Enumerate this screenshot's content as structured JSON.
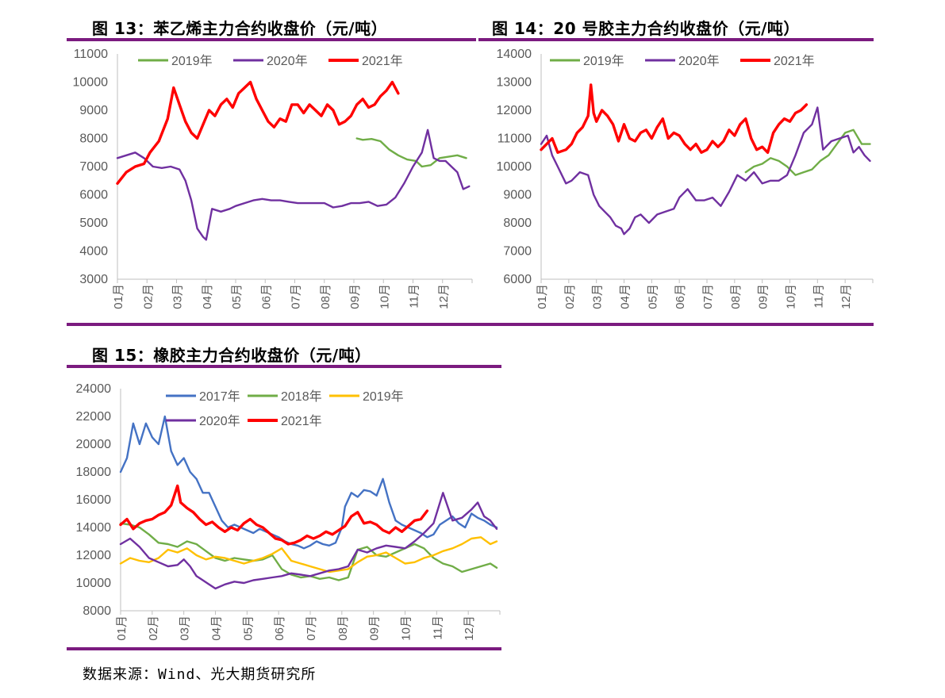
{
  "page": {
    "source": "数据来源：Wind、光大期货研究所"
  },
  "chart_data": [
    {
      "id": "c13",
      "type": "line",
      "title": "图 13：苯乙烯主力合约收盘价（元/吨）",
      "ylim": [
        3000,
        11000
      ],
      "yticks": [
        3000,
        4000,
        5000,
        6000,
        7000,
        8000,
        9000,
        10000,
        11000
      ],
      "categories": [
        "01月",
        "02月",
        "03月",
        "04月",
        "05月",
        "06月",
        "07月",
        "08月",
        "09月",
        "10月",
        "11月",
        "12月"
      ],
      "legend_position": "top",
      "series": [
        {
          "name": "2019年",
          "color": "#70ad47",
          "x": [
            9.1,
            9.3,
            9.6,
            9.9,
            10.2,
            10.5,
            10.8,
            11.1,
            11.3,
            11.6,
            11.9,
            12.2,
            12.5,
            12.8
          ],
          "y": [
            8000,
            7950,
            7980,
            7900,
            7600,
            7400,
            7250,
            7200,
            7000,
            7050,
            7300,
            7350,
            7400,
            7300
          ]
        },
        {
          "name": "2020年",
          "color": "#7030a0",
          "x": [
            1,
            1.3,
            1.6,
            1.9,
            2.2,
            2.5,
            2.8,
            3.1,
            3.3,
            3.5,
            3.7,
            3.9,
            4.0,
            4.2,
            4.5,
            4.8,
            5.0,
            5.3,
            5.6,
            5.9,
            6.2,
            6.5,
            6.8,
            7.1,
            7.4,
            7.7,
            8.0,
            8.3,
            8.6,
            8.9,
            9.2,
            9.5,
            9.8,
            10.1,
            10.4,
            10.7,
            11.0,
            11.3,
            11.5,
            11.7,
            11.9,
            12.1,
            12.3,
            12.5,
            12.7,
            12.9
          ],
          "y": [
            7300,
            7400,
            7500,
            7300,
            7000,
            6950,
            7000,
            6900,
            6500,
            5800,
            4800,
            4500,
            4400,
            5500,
            5400,
            5500,
            5600,
            5700,
            5800,
            5850,
            5800,
            5800,
            5750,
            5700,
            5700,
            5700,
            5700,
            5550,
            5600,
            5700,
            5700,
            5750,
            5600,
            5650,
            5900,
            6400,
            7000,
            7500,
            8300,
            7300,
            7200,
            7200,
            7000,
            6800,
            6200,
            6300
          ]
        },
        {
          "name": "2021年",
          "color": "#ff0000",
          "x": [
            1,
            1.3,
            1.6,
            1.9,
            2.1,
            2.4,
            2.7,
            2.9,
            3.1,
            3.3,
            3.5,
            3.7,
            3.9,
            4.1,
            4.3,
            4.5,
            4.7,
            4.9,
            5.1,
            5.3,
            5.5,
            5.7,
            5.9,
            6.1,
            6.3,
            6.5,
            6.7,
            6.9,
            7.1,
            7.3,
            7.5,
            7.7,
            7.9,
            8.1,
            8.3,
            8.5,
            8.7,
            8.9,
            9.1,
            9.3,
            9.5,
            9.7,
            9.9,
            10.1,
            10.3,
            10.5
          ],
          "y": [
            6400,
            6800,
            7000,
            7100,
            7500,
            7900,
            8700,
            9800,
            9200,
            8600,
            8200,
            8000,
            8500,
            9000,
            8800,
            9200,
            9400,
            9100,
            9600,
            9800,
            10000,
            9400,
            9000,
            8600,
            8400,
            8700,
            8600,
            9200,
            9200,
            8900,
            9200,
            9000,
            8800,
            9200,
            9000,
            8500,
            8600,
            8800,
            9200,
            9400,
            9100,
            9200,
            9500,
            9700,
            10000,
            9600
          ]
        }
      ]
    },
    {
      "id": "c14",
      "type": "line",
      "title": "图 14：20 号胶主力合约收盘价（元/吨）",
      "ylim": [
        6000,
        14000
      ],
      "yticks": [
        6000,
        7000,
        8000,
        9000,
        10000,
        11000,
        12000,
        13000,
        14000
      ],
      "categories": [
        "01月",
        "02月",
        "03月",
        "04月",
        "05月",
        "06月",
        "07月",
        "08月",
        "09月",
        "10月",
        "11月",
        "12月"
      ],
      "legend_position": "top",
      "series": [
        {
          "name": "2019年",
          "color": "#70ad47",
          "x": [
            8.4,
            8.7,
            9.0,
            9.3,
            9.6,
            9.9,
            10.2,
            10.5,
            10.8,
            11.1,
            11.4,
            11.7,
            12.0,
            12.3,
            12.6,
            12.9
          ],
          "y": [
            9800,
            10000,
            10100,
            10300,
            10200,
            10000,
            9700,
            9800,
            9900,
            10200,
            10400,
            10800,
            11200,
            11300,
            10800,
            10800
          ]
        },
        {
          "name": "2020年",
          "color": "#7030a0",
          "x": [
            1,
            1.2,
            1.4,
            1.6,
            1.9,
            2.1,
            2.4,
            2.7,
            2.9,
            3.1,
            3.3,
            3.5,
            3.7,
            3.9,
            4.0,
            4.2,
            4.4,
            4.6,
            4.9,
            5.2,
            5.5,
            5.8,
            6.0,
            6.3,
            6.6,
            6.9,
            7.2,
            7.5,
            7.8,
            8.1,
            8.4,
            8.7,
            9.0,
            9.3,
            9.6,
            9.9,
            10.2,
            10.5,
            10.8,
            11.0,
            11.2,
            11.5,
            11.8,
            12.1,
            12.3,
            12.5,
            12.7,
            12.9
          ],
          "y": [
            10800,
            11100,
            10400,
            10000,
            9400,
            9500,
            9800,
            9700,
            9000,
            8600,
            8400,
            8200,
            7900,
            7800,
            7600,
            7800,
            8200,
            8300,
            8000,
            8300,
            8400,
            8500,
            8900,
            9200,
            8800,
            8800,
            8900,
            8600,
            9100,
            9700,
            9500,
            9800,
            9400,
            9500,
            9500,
            9700,
            10400,
            11200,
            11500,
            12100,
            10600,
            10900,
            11000,
            11100,
            10500,
            10700,
            10400,
            10200
          ]
        },
        {
          "name": "2021年",
          "color": "#ff0000",
          "x": [
            1,
            1.2,
            1.4,
            1.6,
            1.9,
            2.1,
            2.3,
            2.5,
            2.7,
            2.8,
            2.9,
            3.0,
            3.2,
            3.4,
            3.6,
            3.8,
            4.0,
            4.2,
            4.4,
            4.6,
            4.8,
            5.0,
            5.2,
            5.4,
            5.6,
            5.8,
            6.0,
            6.2,
            6.4,
            6.6,
            6.8,
            7.0,
            7.2,
            7.4,
            7.6,
            7.8,
            8.0,
            8.2,
            8.4,
            8.6,
            8.8,
            9.0,
            9.2,
            9.4,
            9.6,
            9.8,
            10.0,
            10.2,
            10.4,
            10.6
          ],
          "y": [
            10600,
            10800,
            11000,
            10500,
            10600,
            10800,
            11200,
            11400,
            11800,
            12900,
            11900,
            11600,
            12000,
            11800,
            11500,
            10900,
            11500,
            11000,
            10900,
            11200,
            11300,
            11000,
            11400,
            11700,
            11000,
            11200,
            11100,
            10800,
            10600,
            10800,
            10500,
            10600,
            10900,
            10700,
            10900,
            11300,
            11100,
            11500,
            11700,
            11000,
            10600,
            10700,
            10500,
            11200,
            11500,
            11700,
            11600,
            11900,
            12000,
            12200
          ]
        }
      ]
    },
    {
      "id": "c15",
      "type": "line",
      "title": "图 15：橡胶主力合约收盘价（元/吨）",
      "ylim": [
        8000,
        24000
      ],
      "yticks": [
        8000,
        10000,
        12000,
        14000,
        16000,
        18000,
        20000,
        22000,
        24000
      ],
      "categories": [
        "01月",
        "02月",
        "03月",
        "04月",
        "05月",
        "06月",
        "07月",
        "08月",
        "09月",
        "10月",
        "11月",
        "12月"
      ],
      "legend_position": "top",
      "series": [
        {
          "name": "2017年",
          "color": "#4472c4",
          "x": [
            1,
            1.2,
            1.4,
            1.6,
            1.8,
            2.0,
            2.2,
            2.4,
            2.6,
            2.8,
            3.0,
            3.2,
            3.4,
            3.6,
            3.8,
            4.0,
            4.2,
            4.4,
            4.6,
            4.8,
            5.0,
            5.2,
            5.4,
            5.6,
            5.8,
            6.0,
            6.2,
            6.4,
            6.6,
            6.8,
            7.0,
            7.2,
            7.4,
            7.6,
            7.8,
            8.0,
            8.1,
            8.3,
            8.5,
            8.7,
            8.9,
            9.1,
            9.3,
            9.5,
            9.7,
            9.9,
            10.1,
            10.3,
            10.5,
            10.7,
            10.9,
            11.1,
            11.3,
            11.5,
            11.7,
            11.9,
            12.1,
            12.3,
            12.5,
            12.7,
            12.9
          ],
          "y": [
            18000,
            19000,
            21500,
            20000,
            21500,
            20500,
            20000,
            22000,
            19500,
            18500,
            19000,
            18000,
            17500,
            16500,
            16500,
            15500,
            14500,
            14000,
            14200,
            14000,
            13800,
            13600,
            13900,
            13700,
            13500,
            13300,
            13000,
            12800,
            12700,
            12500,
            12700,
            13000,
            12800,
            12700,
            12900,
            14000,
            15500,
            16500,
            16200,
            16700,
            16600,
            16300,
            17500,
            15800,
            14500,
            14200,
            14000,
            13800,
            13600,
            13300,
            13500,
            14200,
            14500,
            14800,
            14300,
            14000,
            15000,
            14700,
            14500,
            14200,
            14000
          ]
        },
        {
          "name": "2018年",
          "color": "#70ad47",
          "x": [
            1,
            1.3,
            1.6,
            1.9,
            2.2,
            2.5,
            2.8,
            3.1,
            3.4,
            3.7,
            4.0,
            4.3,
            4.6,
            4.9,
            5.2,
            5.5,
            5.8,
            6.1,
            6.4,
            6.7,
            7.0,
            7.3,
            7.6,
            7.9,
            8.2,
            8.5,
            8.8,
            9.1,
            9.4,
            9.7,
            10.0,
            10.3,
            10.6,
            10.9,
            11.2,
            11.5,
            11.8,
            12.1,
            12.4,
            12.7,
            12.9
          ],
          "y": [
            14300,
            14200,
            14000,
            13500,
            12900,
            12800,
            12600,
            13000,
            12800,
            12300,
            11800,
            11600,
            11800,
            11700,
            11600,
            11700,
            12000,
            11000,
            10600,
            10400,
            10500,
            10300,
            10400,
            10200,
            10400,
            12400,
            12600,
            12000,
            11900,
            12200,
            12500,
            12800,
            12500,
            11800,
            11400,
            11200,
            10800,
            11000,
            11200,
            11400,
            11100
          ]
        },
        {
          "name": "2019年",
          "color": "#ffc000",
          "x": [
            1,
            1.3,
            1.6,
            1.9,
            2.2,
            2.5,
            2.8,
            3.1,
            3.4,
            3.7,
            4.0,
            4.3,
            4.6,
            4.9,
            5.2,
            5.5,
            5.8,
            6.1,
            6.4,
            6.7,
            7.0,
            7.3,
            7.6,
            7.9,
            8.2,
            8.5,
            8.8,
            9.1,
            9.4,
            9.7,
            10.0,
            10.3,
            10.6,
            10.9,
            11.2,
            11.5,
            11.8,
            12.1,
            12.4,
            12.7,
            12.9
          ],
          "y": [
            11400,
            11800,
            11600,
            11500,
            11800,
            12400,
            12200,
            12500,
            12000,
            11700,
            11900,
            11800,
            11600,
            11400,
            11600,
            11800,
            12100,
            12500,
            11600,
            11400,
            11200,
            11000,
            10800,
            10900,
            11000,
            11500,
            11900,
            12000,
            12200,
            11800,
            11400,
            11500,
            11800,
            12000,
            12300,
            12500,
            12800,
            13200,
            13300,
            12800,
            13000
          ]
        },
        {
          "name": "2020年",
          "color": "#7030a0",
          "x": [
            1,
            1.3,
            1.6,
            1.9,
            2.2,
            2.5,
            2.8,
            3.0,
            3.2,
            3.4,
            3.6,
            3.8,
            4.0,
            4.3,
            4.6,
            4.9,
            5.2,
            5.5,
            5.8,
            6.1,
            6.4,
            6.7,
            7.0,
            7.3,
            7.6,
            7.9,
            8.2,
            8.5,
            8.8,
            9.1,
            9.4,
            9.7,
            10.0,
            10.3,
            10.6,
            10.9,
            11.2,
            11.5,
            11.8,
            12.1,
            12.3,
            12.5,
            12.7,
            12.9
          ],
          "y": [
            12800,
            13200,
            12600,
            11800,
            11500,
            11200,
            11300,
            11700,
            11200,
            10500,
            10200,
            9900,
            9600,
            9900,
            10100,
            10000,
            10200,
            10300,
            10400,
            10500,
            10700,
            10600,
            10500,
            10700,
            10900,
            11000,
            11200,
            12400,
            12200,
            12500,
            12700,
            12600,
            12500,
            13000,
            13600,
            14300,
            16500,
            14500,
            14700,
            15300,
            15800,
            14800,
            14500,
            13900
          ]
        },
        {
          "name": "2021年",
          "color": "#ff0000",
          "x": [
            1,
            1.2,
            1.4,
            1.6,
            1.8,
            2.0,
            2.2,
            2.4,
            2.6,
            2.8,
            2.9,
            3.1,
            3.3,
            3.5,
            3.7,
            3.9,
            4.1,
            4.3,
            4.5,
            4.7,
            4.9,
            5.1,
            5.3,
            5.5,
            5.7,
            5.9,
            6.1,
            6.3,
            6.5,
            6.7,
            6.9,
            7.1,
            7.3,
            7.5,
            7.7,
            7.9,
            8.1,
            8.3,
            8.5,
            8.7,
            8.9,
            9.1,
            9.3,
            9.5,
            9.7,
            9.9,
            10.1,
            10.3,
            10.5,
            10.7
          ],
          "y": [
            14200,
            14600,
            13900,
            14300,
            14500,
            14600,
            14900,
            15100,
            15600,
            17000,
            15800,
            15400,
            15100,
            14600,
            14200,
            14400,
            14000,
            13700,
            14000,
            13800,
            14300,
            14600,
            14200,
            14000,
            13600,
            13200,
            13100,
            12800,
            12900,
            13100,
            13400,
            13200,
            13400,
            13700,
            13500,
            13800,
            14100,
            14800,
            15100,
            14300,
            14400,
            14200,
            13800,
            13600,
            14000,
            13700,
            14100,
            14500,
            14600,
            15200
          ]
        }
      ]
    }
  ]
}
